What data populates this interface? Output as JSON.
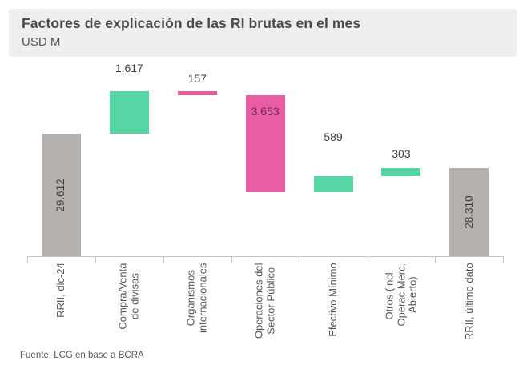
{
  "header": {
    "title": "Factores de explicación de las RI brutas en el mes",
    "units": "USD M"
  },
  "footer": {
    "source": "Fuente: LCG en base a BCRA"
  },
  "colors": {
    "total_bar": "#b4b1af",
    "increase_bar": "#56d5a5",
    "decrease_bar": "#e95da3",
    "header_band": "#efeeed",
    "title_text": "#4c4a48",
    "data_label": "#3f3f3f",
    "inside_decrease_label": "#6d2b56",
    "axis": "#c6c4c2",
    "category_label": "#595755"
  },
  "chart_data": {
    "type": "waterfall",
    "title": "Factores de explicación de las RI brutas en el mes",
    "ylabel": "USD M",
    "source": "Fuente: LCG en base a BCRA",
    "axis_baseline_value": 25000,
    "grid": false,
    "legend": false,
    "categories": [
      "RRII, dic-24",
      "Compra/Venta de divisas",
      "Organismos internacionales",
      "Operaciones del Sector Público",
      "Efectivo Mínimo",
      "Otros (incl. Operac.Merc. Abierto)",
      "RRII, último dato"
    ],
    "bars": [
      {
        "category_lines": [
          "RRII, dic-24"
        ],
        "role": "total",
        "value": 29612,
        "display": "29.612",
        "label_placement": "inside-vertical"
      },
      {
        "category_lines": [
          "Compra/Venta",
          "de divisas"
        ],
        "role": "increase",
        "value": 1617,
        "display": "1.617",
        "label_placement": "above"
      },
      {
        "category_lines": [
          "Organismos",
          "internacionales"
        ],
        "role": "decrease",
        "value": 157,
        "display": "157",
        "label_placement": "above"
      },
      {
        "category_lines": [
          "Operaciones del",
          "Sector Público"
        ],
        "role": "decrease",
        "value": 3653,
        "display": "3.653",
        "label_placement": "inside-top"
      },
      {
        "category_lines": [
          "Efectivo Mínimo"
        ],
        "role": "increase",
        "value": 589,
        "display": "589",
        "label_placement": "above"
      },
      {
        "category_lines": [
          "Otros (incl.",
          "Operac.Merc.",
          "Abierto)"
        ],
        "role": "increase",
        "value": 303,
        "display": "303",
        "label_placement": "above"
      },
      {
        "category_lines": [
          "RRII, último dato"
        ],
        "role": "total",
        "value": 28310,
        "display": "28.310",
        "label_placement": "inside-vertical"
      }
    ],
    "cumulative": [
      29612,
      31229,
      31072,
      27419,
      28008,
      28311,
      28310
    ]
  }
}
